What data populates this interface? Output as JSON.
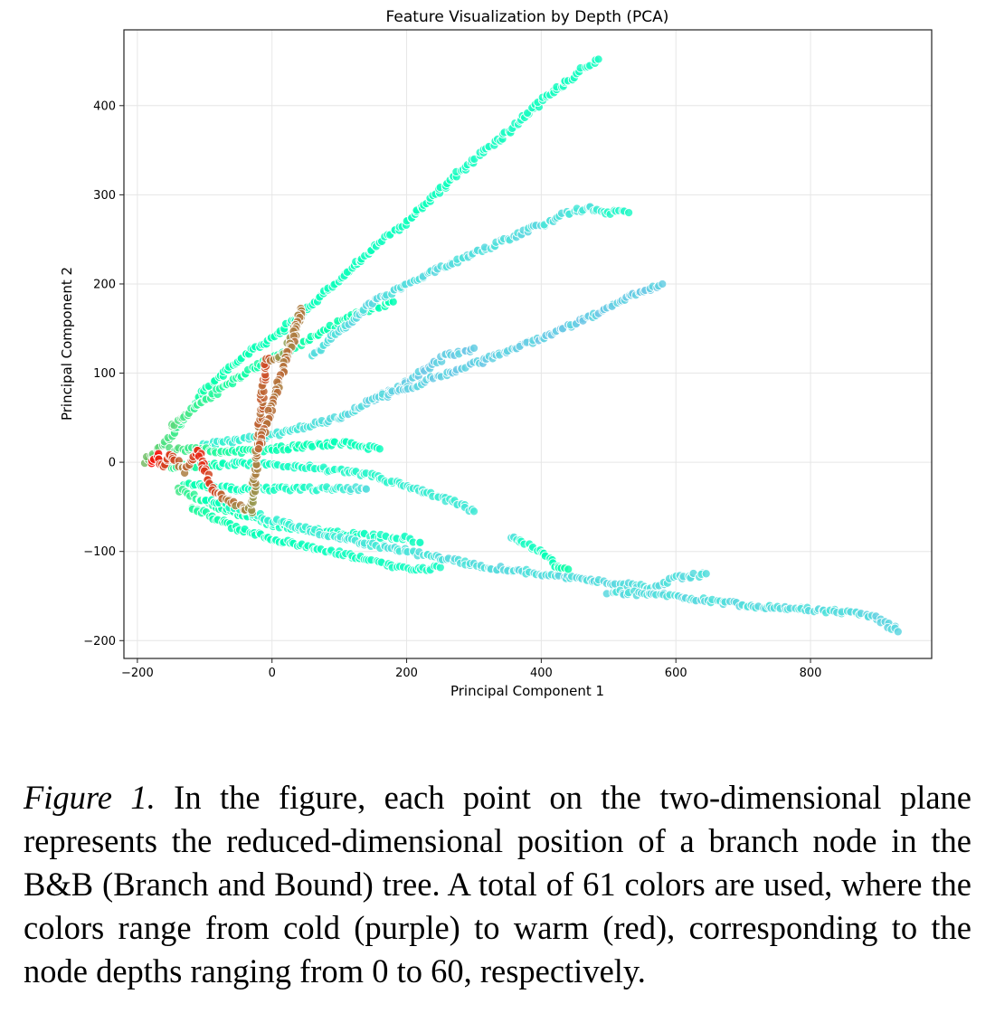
{
  "chart_data": {
    "type": "scatter",
    "title": "Feature Visualization by Depth (PCA)",
    "xlabel": "Principal Component 1",
    "ylabel": "Principal Component 2",
    "xlim": [
      -220,
      980
    ],
    "ylim": [
      -220,
      485
    ],
    "xticks": [
      -200,
      0,
      200,
      400,
      600,
      800
    ],
    "yticks": [
      -200,
      -100,
      0,
      100,
      200,
      300,
      400
    ],
    "grid": true,
    "legend": "none",
    "color_map": "rainbow (cold purple = depth 0, warm red = depth 60)",
    "color_range": [
      "#8000ff",
      "#ff0000"
    ],
    "branches": [
      {
        "points": [
          [
            -190,
            0
          ],
          [
            -150,
            30
          ],
          [
            -100,
            80
          ],
          [
            -50,
            115
          ],
          [
            0,
            140
          ],
          [
            50,
            170
          ],
          [
            100,
            205
          ],
          [
            150,
            240
          ],
          [
            200,
            270
          ],
          [
            250,
            305
          ],
          [
            300,
            340
          ],
          [
            350,
            370
          ],
          [
            400,
            405
          ],
          [
            450,
            435
          ],
          [
            485,
            452
          ]
        ],
        "depths": [
          44,
          38,
          32,
          30,
          30,
          29,
          28,
          28,
          28,
          28,
          27,
          27,
          27,
          27,
          27
        ]
      },
      {
        "points": [
          [
            -150,
            40
          ],
          [
            -100,
            70
          ],
          [
            -30,
            105
          ],
          [
            50,
            135
          ],
          [
            120,
            165
          ],
          [
            180,
            180
          ]
        ],
        "depths": [
          40,
          36,
          33,
          32,
          31,
          30
        ]
      },
      {
        "points": [
          [
            60,
            120
          ],
          [
            150,
            180
          ],
          [
            230,
            210
          ],
          [
            300,
            235
          ],
          [
            380,
            260
          ],
          [
            440,
            280
          ],
          [
            470,
            285
          ],
          [
            500,
            280
          ],
          [
            530,
            280
          ]
        ],
        "depths": [
          20,
          20,
          20,
          20,
          20,
          21,
          21,
          25,
          26
        ]
      },
      {
        "points": [
          [
            -100,
            20
          ],
          [
            0,
            30
          ],
          [
            100,
            50
          ],
          [
            200,
            90
          ],
          [
            260,
            120
          ],
          [
            300,
            128
          ]
        ],
        "depths": [
          24,
          22,
          20,
          18,
          18,
          18
        ]
      },
      {
        "points": [
          [
            150,
            70
          ],
          [
            300,
            110
          ],
          [
            400,
            140
          ],
          [
            480,
            165
          ],
          [
            540,
            190
          ],
          [
            580,
            200
          ]
        ],
        "depths": [
          19,
          18,
          18,
          18,
          18,
          18
        ]
      },
      {
        "points": [
          [
            -150,
            15
          ],
          [
            -50,
            12
          ],
          [
            50,
            18
          ],
          [
            100,
            22
          ],
          [
            160,
            15
          ]
        ],
        "depths": [
          40,
          32,
          30,
          29,
          28
        ]
      },
      {
        "points": [
          [
            -160,
            -5
          ],
          [
            -50,
            -2
          ],
          [
            50,
            -5
          ],
          [
            150,
            -15
          ],
          [
            210,
            -30
          ],
          [
            270,
            -45
          ],
          [
            300,
            -55
          ]
        ],
        "depths": [
          38,
          28,
          26,
          25,
          23,
          22,
          22
        ]
      },
      {
        "points": [
          [
            -130,
            -25
          ],
          [
            -50,
            -30
          ],
          [
            50,
            -30
          ],
          [
            140,
            -30
          ]
        ],
        "depths": [
          32,
          28,
          26,
          20
        ]
      },
      {
        "points": [
          [
            -140,
            -30
          ],
          [
            -80,
            -50
          ],
          [
            0,
            -70
          ],
          [
            100,
            -80
          ],
          [
            200,
            -85
          ],
          [
            220,
            -90
          ]
        ],
        "depths": [
          38,
          32,
          28,
          27,
          27,
          27
        ]
      },
      {
        "points": [
          [
            -120,
            -50
          ],
          [
            -50,
            -75
          ],
          [
            50,
            -95
          ],
          [
            150,
            -110
          ],
          [
            200,
            -120
          ],
          [
            250,
            -118
          ]
        ],
        "depths": [
          34,
          30,
          28,
          27,
          27,
          26
        ]
      },
      {
        "points": [
          [
            -100,
            -40
          ],
          [
            0,
            -65
          ],
          [
            100,
            -85
          ],
          [
            200,
            -100
          ],
          [
            300,
            -115
          ],
          [
            400,
            -125
          ],
          [
            500,
            -135
          ],
          [
            560,
            -140
          ],
          [
            600,
            -130
          ],
          [
            645,
            -125
          ]
        ],
        "depths": [
          30,
          24,
          22,
          21,
          20,
          20,
          20,
          20,
          20,
          20
        ]
      },
      {
        "points": [
          [
            500,
            -145
          ],
          [
            600,
            -150
          ],
          [
            700,
            -160
          ],
          [
            800,
            -165
          ],
          [
            870,
            -170
          ],
          [
            900,
            -175
          ],
          [
            930,
            -190
          ]
        ],
        "depths": [
          20,
          20,
          20,
          20,
          20,
          19,
          19
        ]
      },
      {
        "points": [
          [
            -180,
            0
          ],
          [
            -170,
            8
          ],
          [
            -160,
            -5
          ],
          [
            -150,
            10
          ],
          [
            -130,
            -10
          ],
          [
            -110,
            14
          ],
          [
            -90,
            -28
          ],
          [
            -70,
            -42
          ],
          [
            -30,
            -55
          ],
          [
            -10,
            115
          ],
          [
            20,
            120
          ],
          [
            45,
            172
          ],
          [
            -20,
            15
          ]
        ],
        "depths": [
          60,
          58,
          55,
          56,
          50,
          57,
          55,
          52,
          48,
          54,
          46,
          50,
          52
        ]
      },
      {
        "points": [
          [
            355,
            -85
          ],
          [
            380,
            -93
          ],
          [
            400,
            -100
          ],
          [
            420,
            -115
          ],
          [
            440,
            -120
          ]
        ],
        "depths": [
          21,
          27,
          28,
          30,
          32
        ]
      }
    ]
  },
  "caption": {
    "lead": "Figure 1.",
    "text": "In the figure, each point on the two-dimensional plane represents the reduced-dimensional position of a branch node in the B&B (Branch and Bound) tree. A total of 61 colors are used, where the colors range from cold (purple) to warm (red), corresponding to the node depths ranging from 0 to 60, respectively."
  }
}
